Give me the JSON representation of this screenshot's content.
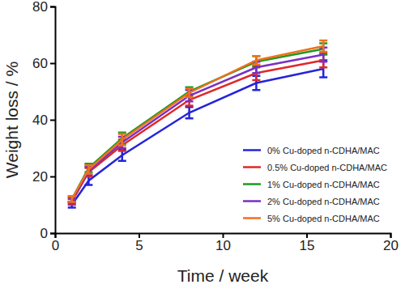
{
  "chart_data": {
    "type": "line",
    "x_label": "Time / week",
    "y_label": "Weight loss / %",
    "x": [
      1,
      2,
      4,
      8,
      12,
      16
    ],
    "xlim": [
      0,
      20
    ],
    "xticks": [
      0,
      5,
      10,
      15,
      20
    ],
    "ylim": [
      0,
      80
    ],
    "yticks": [
      0,
      20,
      40,
      60,
      80
    ],
    "grid": false,
    "legend": "lower right",
    "series": [
      {
        "name": "0% Cu-doped n-CDHA/MAC",
        "color": "#2424d8",
        "values": [
          10,
          18.5,
          27.5,
          42.5,
          53,
          58
        ],
        "errors": [
          1,
          1.5,
          2,
          2,
          2.5,
          3
        ]
      },
      {
        "name": "0.5% Cu-doped n-CDHA/MAC",
        "color": "#e02828",
        "values": [
          11,
          21.5,
          31,
          47,
          56.5,
          61
        ],
        "errors": [
          1,
          1.5,
          2,
          2,
          2.5,
          2.5
        ]
      },
      {
        "name": "1% Cu-doped n-CDHA/MAC",
        "color": "#1e9a1e",
        "values": [
          12,
          23,
          33.5,
          50,
          60.5,
          65
        ],
        "errors": [
          1,
          1.5,
          2,
          1.5,
          2,
          2
        ]
      },
      {
        "name": "2% Cu-doped n-CDHA/MAC",
        "color": "#7a30c0",
        "values": [
          11.5,
          22,
          32,
          48.5,
          58.5,
          63
        ],
        "errors": [
          1,
          1.5,
          2,
          2,
          2,
          2.5
        ]
      },
      {
        "name": "5% Cu-doped n-CDHA/MAC",
        "color": "#f07020",
        "values": [
          12,
          22.5,
          33,
          49.5,
          61,
          66
        ],
        "errors": [
          1,
          1.5,
          2,
          1.5,
          1.5,
          2
        ]
      }
    ]
  }
}
